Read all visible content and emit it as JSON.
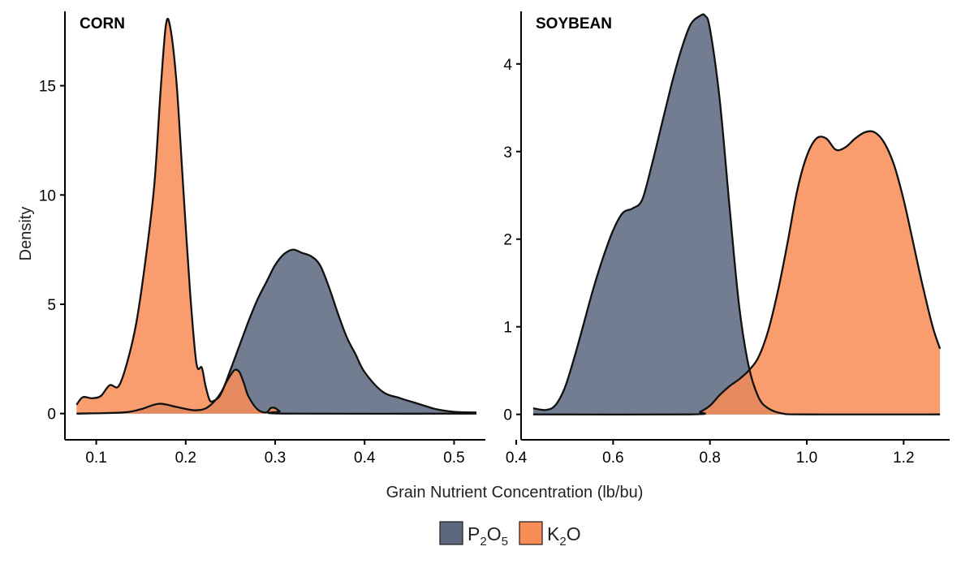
{
  "chart_data": {
    "type": "area",
    "ylabel": "Density",
    "xlabel": "Grain Nutrient Concentration (lb/bu)",
    "legend": {
      "position": "bottom",
      "items": [
        {
          "key": "P2O5",
          "base": "P",
          "sub1": "2",
          "mid": "O",
          "sub2": "5",
          "color": "#5b6880"
        },
        {
          "key": "K2O",
          "base": "K",
          "sub1": "2",
          "mid": "O",
          "sub2": "",
          "color": "#f98d56"
        }
      ]
    },
    "grid": false,
    "panels": [
      {
        "title": "CORN",
        "xlim": [
          0.065,
          0.535
        ],
        "ylim": [
          -1.2,
          18.4
        ],
        "xticks": [
          0.1,
          0.2,
          0.3,
          0.4,
          0.5
        ],
        "xtick_labels": [
          "0.1",
          "0.2",
          "0.3",
          "0.4",
          "0.5"
        ],
        "yticks": [
          0,
          5,
          10,
          15
        ],
        "ytick_labels": [
          "0",
          "5",
          "10",
          "15"
        ],
        "series": [
          {
            "key": "P2O5",
            "x": [
              0.078,
              0.13,
              0.15,
              0.17,
              0.19,
              0.21,
              0.225,
              0.24,
              0.25,
              0.26,
              0.27,
              0.28,
              0.29,
              0.3,
              0.31,
              0.32,
              0.33,
              0.34,
              0.35,
              0.36,
              0.37,
              0.38,
              0.39,
              0.4,
              0.42,
              0.44,
              0.46,
              0.48,
              0.5,
              0.525
            ],
            "y": [
              0.0,
              0.05,
              0.2,
              0.45,
              0.3,
              0.15,
              0.3,
              1.0,
              2.0,
              3.1,
              4.2,
              5.2,
              6.0,
              6.8,
              7.3,
              7.5,
              7.35,
              7.2,
              6.8,
              5.8,
              4.6,
              3.5,
              2.7,
              1.9,
              1.0,
              0.7,
              0.45,
              0.2,
              0.08,
              0.05
            ]
          },
          {
            "key": "K2O",
            "x": [
              0.078,
              0.085,
              0.095,
              0.105,
              0.115,
              0.125,
              0.135,
              0.145,
              0.155,
              0.165,
              0.172,
              0.178,
              0.183,
              0.19,
              0.197,
              0.205,
              0.212,
              0.218,
              0.222,
              0.227,
              0.232,
              0.238,
              0.245,
              0.25,
              0.255,
              0.26,
              0.265,
              0.27,
              0.28,
              0.29,
              0.295,
              0.3,
              0.305,
              0.31,
              0.525
            ],
            "y": [
              0.4,
              0.75,
              0.7,
              0.8,
              1.3,
              1.25,
              2.4,
              4.2,
              7.0,
              10.5,
              14.8,
              17.8,
              17.6,
              15.0,
              10.5,
              5.5,
              2.3,
              2.1,
              1.3,
              0.6,
              0.6,
              0.8,
              1.4,
              1.75,
              2.0,
              1.9,
              1.4,
              0.8,
              0.2,
              0.05,
              0.25,
              0.25,
              0.1,
              0.0,
              0.0
            ]
          }
        ]
      },
      {
        "title": "SOYBEAN",
        "xlim": [
          0.41,
          1.295
        ],
        "ylim": [
          -0.29,
          4.6
        ],
        "xticks": [
          0.4,
          0.6,
          0.8,
          1.0,
          1.2
        ],
        "xtick_labels": [
          "0.4",
          "0.6",
          "0.8",
          "1.0",
          "1.2"
        ],
        "yticks": [
          0,
          1,
          2,
          3,
          4
        ],
        "ytick_labels": [
          "0",
          "1",
          "2",
          "3",
          "4"
        ],
        "series": [
          {
            "key": "P2O5",
            "x": [
              0.435,
              0.46,
              0.48,
              0.5,
              0.52,
              0.54,
              0.56,
              0.58,
              0.6,
              0.62,
              0.64,
              0.66,
              0.68,
              0.7,
              0.72,
              0.74,
              0.76,
              0.78,
              0.79,
              0.8,
              0.82,
              0.84,
              0.86,
              0.88,
              0.9,
              0.92,
              0.95,
              1.0,
              1.275
            ],
            "y": [
              0.07,
              0.05,
              0.1,
              0.3,
              0.65,
              1.05,
              1.45,
              1.8,
              2.1,
              2.3,
              2.35,
              2.45,
              2.85,
              3.3,
              3.75,
              4.15,
              4.45,
              4.55,
              4.55,
              4.4,
              3.6,
              2.4,
              1.25,
              0.55,
              0.2,
              0.07,
              0.01,
              0.0,
              0.0
            ]
          },
          {
            "key": "K2O",
            "x": [
              0.435,
              0.76,
              0.78,
              0.8,
              0.82,
              0.84,
              0.86,
              0.88,
              0.9,
              0.92,
              0.94,
              0.96,
              0.98,
              1.0,
              1.02,
              1.04,
              1.06,
              1.08,
              1.1,
              1.12,
              1.14,
              1.16,
              1.18,
              1.2,
              1.22,
              1.24,
              1.26,
              1.275
            ],
            "y": [
              0.0,
              0.0,
              0.03,
              0.1,
              0.22,
              0.32,
              0.4,
              0.5,
              0.65,
              0.95,
              1.4,
              1.95,
              2.55,
              2.95,
              3.15,
              3.15,
              3.02,
              3.05,
              3.15,
              3.22,
              3.22,
              3.1,
              2.85,
              2.45,
              1.95,
              1.45,
              1.0,
              0.75
            ]
          }
        ]
      }
    ]
  }
}
